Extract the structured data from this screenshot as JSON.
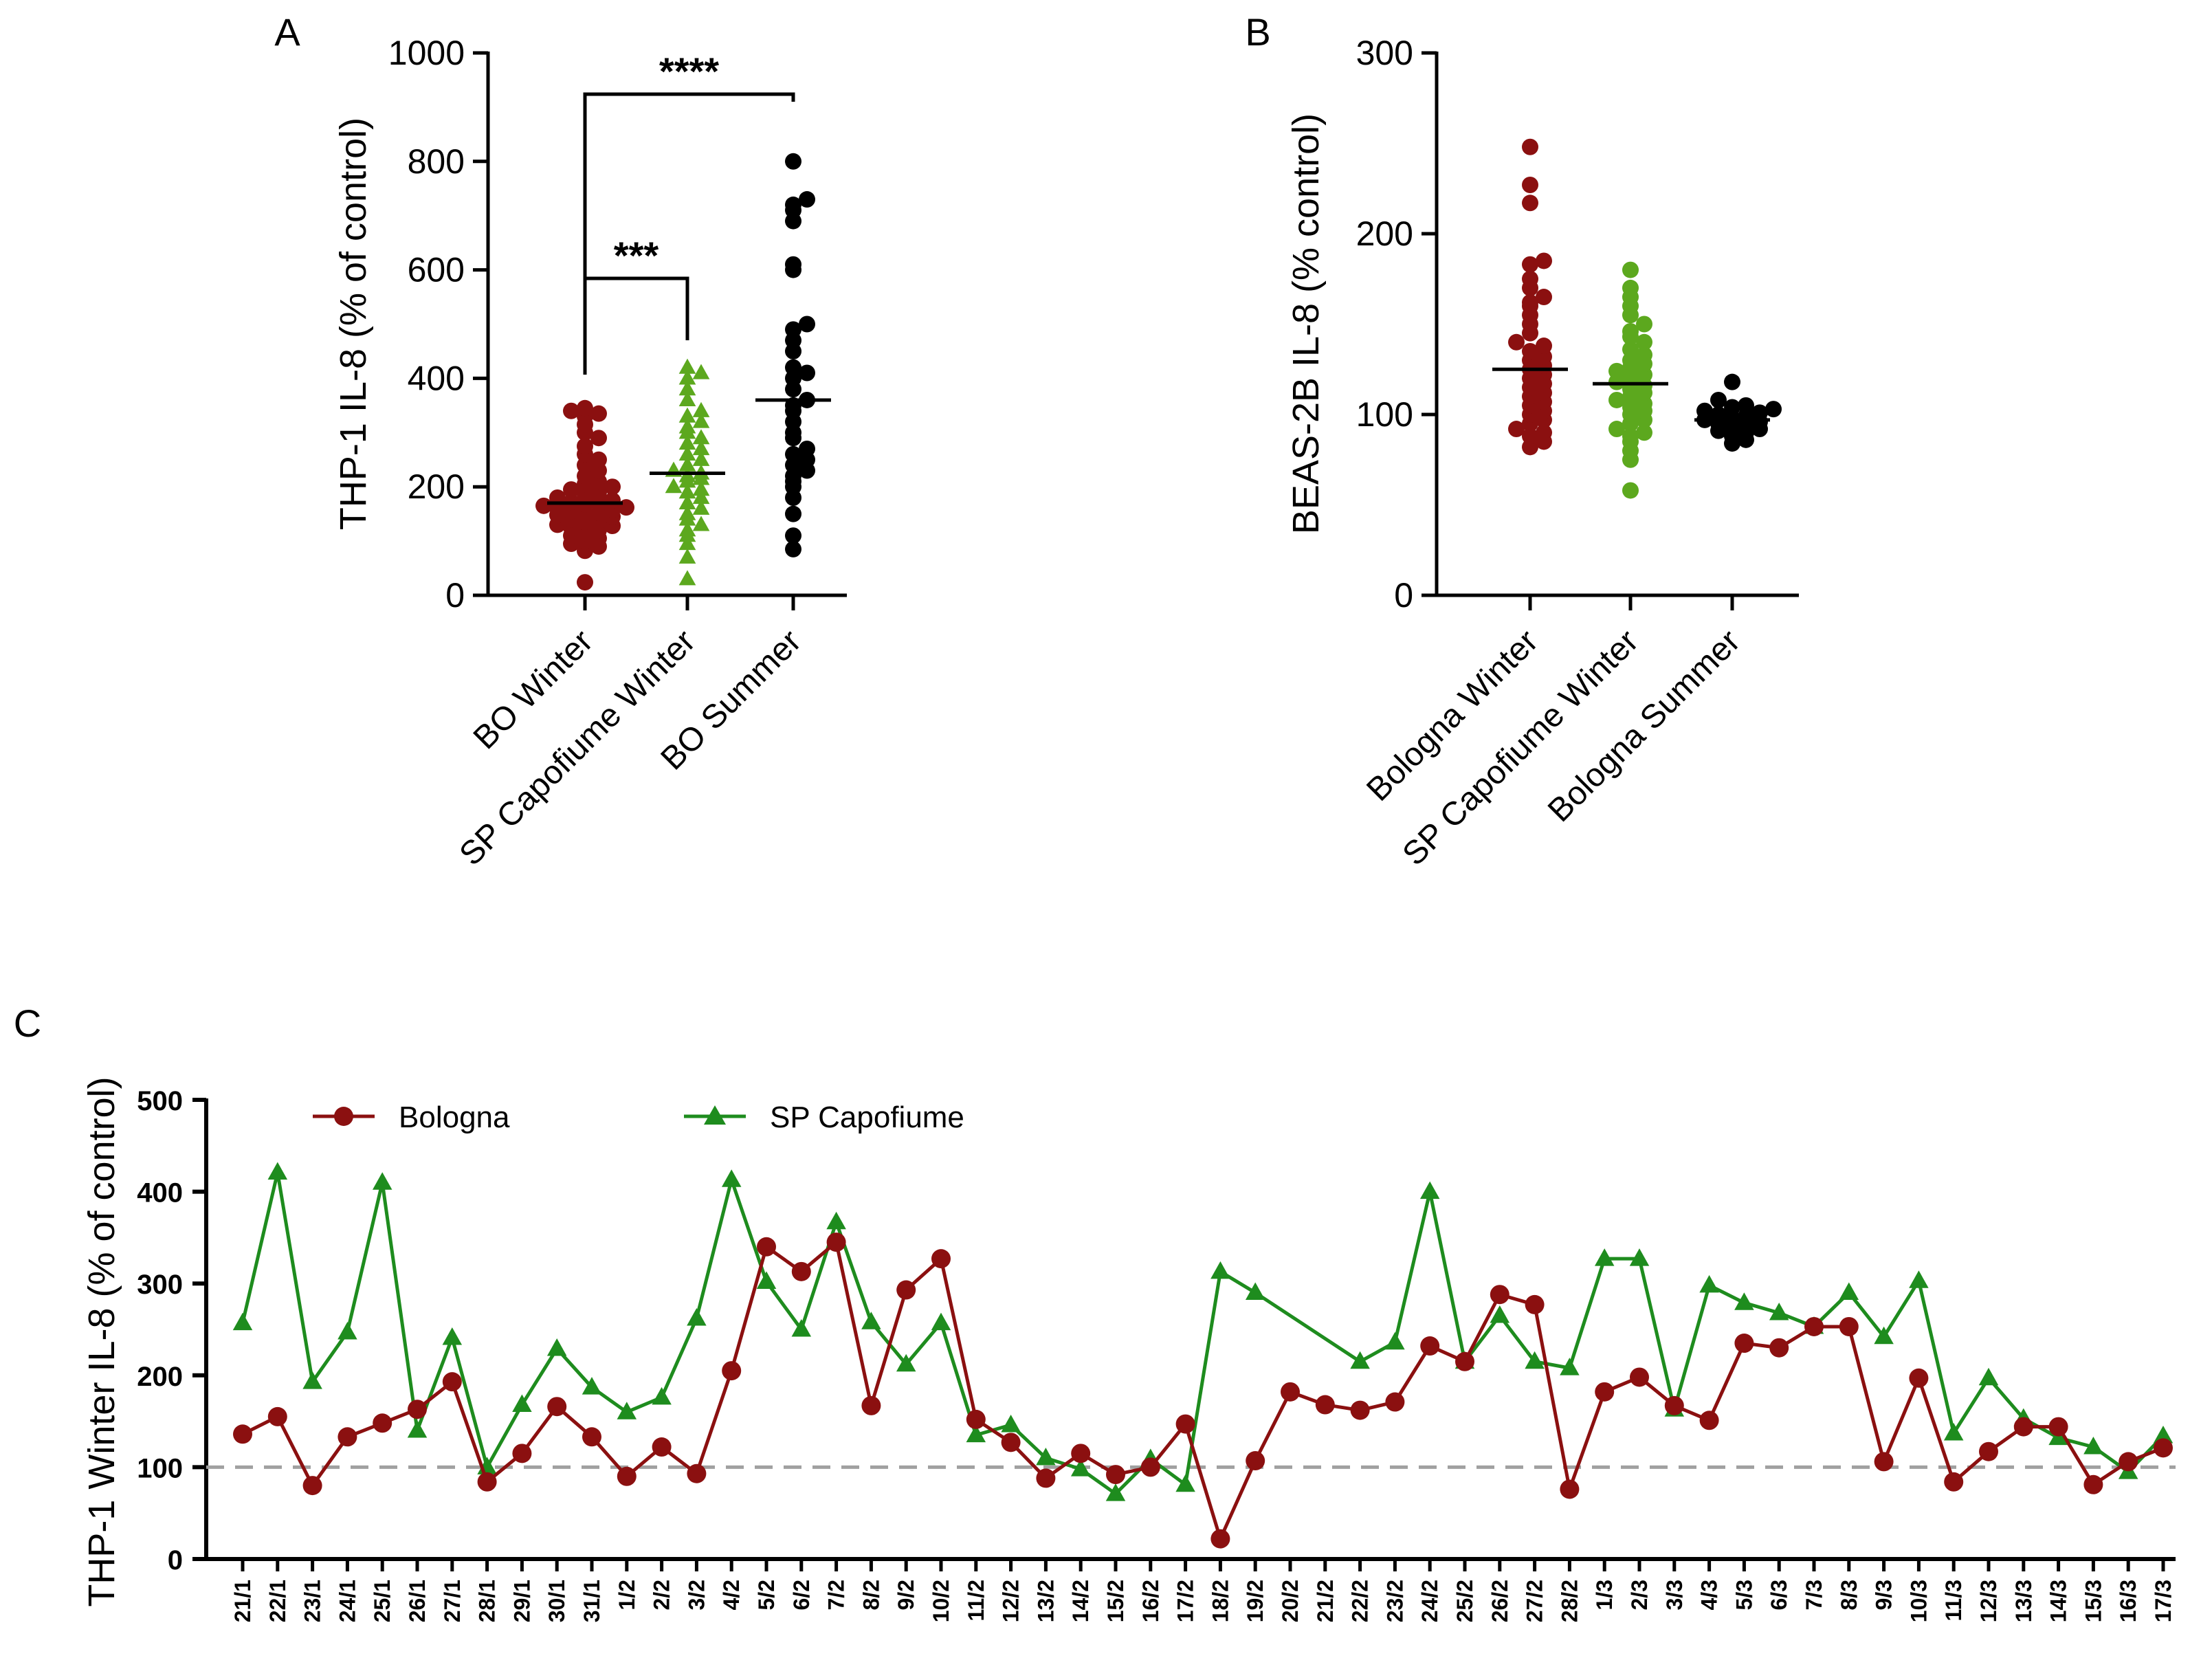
{
  "colors": {
    "bologna": "#8B1010",
    "sp_capofiume": "#1E8C1E",
    "sp_capofiume_light": "#5CA81E",
    "bo_summer": "#000000",
    "reference_line": "#A0A0A0",
    "axis": "#000000"
  },
  "chart_data": [
    {
      "id": "A",
      "panel_label": "A",
      "type": "scatter",
      "ylabel": "THP-1 IL-8 (% of control)",
      "ylim": [
        0,
        1000
      ],
      "yticks": [
        0,
        200,
        400,
        600,
        800,
        1000
      ],
      "categories": [
        "BO Winter",
        "SP Capofiume Winter",
        "BO Summer"
      ],
      "series": [
        {
          "name": "BO Winter",
          "marker": "circle",
          "color": "#8B1010",
          "median": 170,
          "values": [
            24,
            82,
            90,
            95,
            100,
            105,
            110,
            115,
            120,
            125,
            128,
            130,
            135,
            138,
            140,
            145,
            148,
            150,
            152,
            155,
            158,
            160,
            162,
            165,
            168,
            170,
            172,
            175,
            180,
            185,
            190,
            195,
            200,
            205,
            210,
            220,
            230,
            240,
            250,
            260,
            275,
            290,
            300,
            315,
            330,
            335,
            340,
            345
          ]
        },
        {
          "name": "SP Capofiume Winter",
          "marker": "triangle",
          "color": "#5CA81E",
          "median": 225,
          "values": [
            30,
            70,
            95,
            110,
            120,
            130,
            140,
            150,
            160,
            170,
            180,
            190,
            195,
            200,
            210,
            215,
            220,
            225,
            230,
            240,
            250,
            260,
            270,
            280,
            290,
            300,
            310,
            320,
            330,
            340,
            360,
            380,
            400,
            410,
            420
          ]
        },
        {
          "name": "BO Summer",
          "marker": "circle",
          "color": "#000000",
          "median": 360,
          "values": [
            85,
            110,
            150,
            180,
            200,
            210,
            220,
            230,
            240,
            250,
            260,
            270,
            290,
            300,
            320,
            340,
            350,
            360,
            380,
            400,
            410,
            420,
            450,
            470,
            490,
            500,
            600,
            610,
            690,
            710,
            720,
            730,
            800
          ]
        }
      ],
      "significance": [
        {
          "from": "BO Winter",
          "to": "SP Capofiume Winter",
          "label": "***"
        },
        {
          "from": "BO Winter",
          "to": "BO Summer",
          "label": "****"
        }
      ]
    },
    {
      "id": "B",
      "panel_label": "B",
      "type": "scatter",
      "ylabel": "BEAS-2B IL-8 (% control)",
      "ylim": [
        0,
        300
      ],
      "yticks": [
        0,
        100,
        200,
        300
      ],
      "categories": [
        "Bologna Winter",
        "SP Capofiume Winter",
        "Bologna Summer"
      ],
      "series": [
        {
          "name": "Bologna Winter",
          "marker": "circle",
          "color": "#8B1010",
          "median": 125,
          "values": [
            82,
            85,
            88,
            90,
            92,
            95,
            97,
            100,
            102,
            105,
            107,
            110,
            112,
            115,
            117,
            120,
            122,
            125,
            127,
            130,
            132,
            135,
            138,
            140,
            145,
            150,
            155,
            160,
            162,
            165,
            170,
            175,
            183,
            185,
            217,
            227,
            248
          ]
        },
        {
          "name": "SP Capofiume Winter",
          "marker": "circle",
          "color": "#5CA81E",
          "median": 117,
          "values": [
            58,
            75,
            80,
            85,
            88,
            90,
            92,
            95,
            97,
            100,
            102,
            104,
            106,
            108,
            110,
            112,
            114,
            116,
            118,
            120,
            122,
            124,
            126,
            128,
            130,
            133,
            136,
            140,
            143,
            146,
            150,
            155,
            160,
            165,
            170,
            180
          ]
        },
        {
          "name": "Bologna Summer",
          "marker": "circle",
          "color": "#000000",
          "median": 97,
          "values": [
            84,
            86,
            88,
            90,
            91,
            92,
            93,
            94,
            95,
            96,
            97,
            98,
            99,
            100,
            101,
            102,
            103,
            104,
            105,
            108,
            118
          ]
        }
      ]
    },
    {
      "id": "C",
      "panel_label": "C",
      "type": "line",
      "ylabel": "THP-1 Winter IL-8 (% of control)",
      "ylim": [
        0,
        500
      ],
      "yticks": [
        0,
        100,
        200,
        300,
        400,
        500
      ],
      "reference_line": 100,
      "categories": [
        "21/1",
        "22/1",
        "23/1",
        "24/1",
        "25/1",
        "26/1",
        "27/1",
        "28/1",
        "29/1",
        "30/1",
        "31/1",
        "1/2",
        "2/2",
        "3/2",
        "4/2",
        "5/2",
        "6/2",
        "7/2",
        "8/2",
        "9/2",
        "10/2",
        "11/2",
        "12/2",
        "13/2",
        "14/2",
        "15/2",
        "16/2",
        "17/2",
        "18/2",
        "19/2",
        "20/2",
        "21/2",
        "22/2",
        "23/2",
        "24/2",
        "25/2",
        "26/2",
        "27/2",
        "28/2",
        "1/3",
        "2/3",
        "3/3",
        "4/3",
        "5/3",
        "6/3",
        "7/3",
        "8/3",
        "9/3",
        "10/3",
        "11/3",
        "12/3",
        "13/3",
        "14/3",
        "15/3",
        "16/3",
        "17/3"
      ],
      "series": [
        {
          "name": "Bologna",
          "marker": "circle",
          "color": "#8B1010",
          "values": [
            136,
            155,
            80,
            133,
            148,
            163,
            193,
            84,
            115,
            166,
            133,
            90,
            122,
            93,
            205,
            340,
            313,
            345,
            167,
            293,
            327,
            152,
            127,
            88,
            115,
            92,
            100,
            147,
            22,
            107,
            182,
            168,
            162,
            171,
            232,
            215,
            288,
            277,
            76,
            182,
            198,
            167,
            151,
            235,
            230,
            253,
            253,
            106,
            197,
            84,
            117,
            144,
            144,
            81,
            106,
            121
          ]
        },
        {
          "name": "SP Capofiume",
          "marker": "triangle",
          "color": "#1E8C1E",
          "values": [
            257,
            421,
            193,
            247,
            410,
            140,
            241,
            100,
            168,
            229,
            187,
            160,
            176,
            262,
            413,
            302,
            250,
            367,
            258,
            212,
            257,
            135,
            146,
            110,
            98,
            71,
            109,
            81,
            313,
            290,
            null,
            null,
            215,
            236,
            400,
            215,
            265,
            215,
            208,
            327,
            327,
            163,
            298,
            279,
            268,
            253,
            290,
            242,
            303,
            137,
            197,
            153,
            132,
            122,
            95,
            134
          ]
        }
      ]
    }
  ]
}
